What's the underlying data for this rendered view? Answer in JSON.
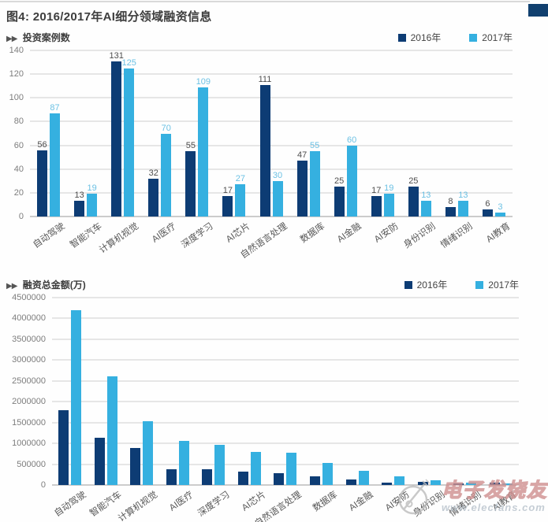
{
  "page": {
    "title": "图4: 2016/2017年AI细分领域融资信息",
    "section_marker": "▶▶"
  },
  "colors": {
    "bar_2016": "#0d3c74",
    "bar_2017": "#35b0e0",
    "grid": "#cdcdcd",
    "axis": "#9a9a9a"
  },
  "chart_data": [
    {
      "type": "bar",
      "title": "投资案例数",
      "categories": [
        "自动驾驶",
        "智能汽车",
        "计算机视觉",
        "AI医疗",
        "深度学习",
        "AI芯片",
        "自然语言处理",
        "数据库",
        "AI金融",
        "AI安防",
        "身份识别",
        "情绪识别",
        "AI教育"
      ],
      "series": [
        {
          "name": "2016年",
          "values": [
            56,
            13,
            131,
            32,
            55,
            17,
            111,
            47,
            25,
            17,
            25,
            8,
            6
          ]
        },
        {
          "name": "2017年",
          "values": [
            87,
            19,
            125,
            70,
            109,
            27,
            30,
            55,
            60,
            19,
            13,
            13,
            3
          ]
        }
      ],
      "ylim": [
        0,
        140
      ],
      "yticks": [
        0,
        20,
        40,
        60,
        80,
        100,
        120,
        140
      ],
      "value_labels": true,
      "grid": true,
      "legend_position": "top-right"
    },
    {
      "type": "bar",
      "title": "融资总金额(万)",
      "categories": [
        "自动驾驶",
        "智能汽车",
        "计算机视觉",
        "AI医疗",
        "深度学习",
        "AI芯片",
        "自然语言处理",
        "数据库",
        "AI金融",
        "AI安防",
        "身份识别",
        "情绪识别",
        "AI教育"
      ],
      "series": [
        {
          "name": "2016年",
          "values": [
            1800000,
            1140000,
            890000,
            380000,
            380000,
            320000,
            280000,
            200000,
            130000,
            60000,
            80000,
            40000,
            50000
          ]
        },
        {
          "name": "2017年",
          "values": [
            4200000,
            2610000,
            1530000,
            1050000,
            970000,
            800000,
            780000,
            530000,
            350000,
            200000,
            120000,
            60000,
            40000
          ]
        }
      ],
      "ylim": [
        0,
        4500000
      ],
      "yticks": [
        0,
        500000,
        1000000,
        1500000,
        2000000,
        2500000,
        3000000,
        3500000,
        4000000,
        4500000
      ],
      "value_labels": false,
      "grid": true,
      "legend_position": "top-right"
    }
  ],
  "watermark": {
    "brand": "电子发烧友",
    "url": "www.elecfans.com"
  }
}
